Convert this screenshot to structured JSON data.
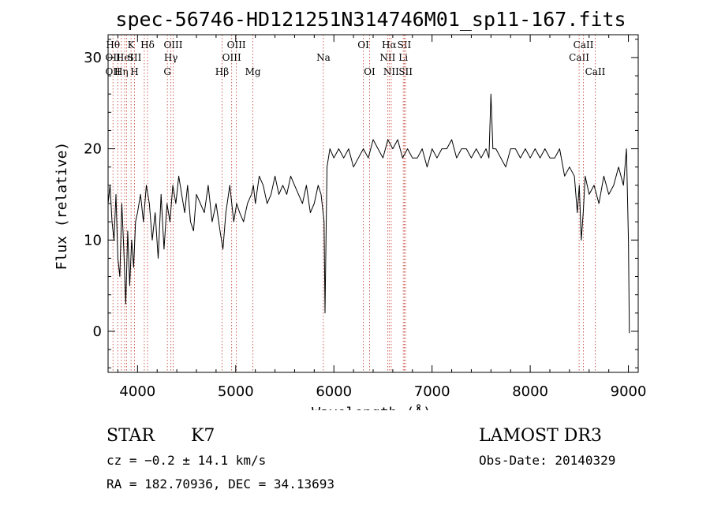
{
  "chart_data": {
    "type": "line",
    "title": "spec-56746-HD121251N314746M01_sp11-167.fits",
    "xlabel": "Wavelength (Å)",
    "ylabel": "Flux (relative)",
    "xlim": [
      3700,
      9100
    ],
    "ylim": [
      -4.5,
      32.5
    ],
    "xticks": [
      4000,
      5000,
      6000,
      7000,
      8000,
      9000
    ],
    "yticks": [
      0,
      10,
      20,
      30
    ],
    "grid": false,
    "series": [
      {
        "name": "flux",
        "color": "#000000",
        "x": [
          3700,
          3720,
          3740,
          3760,
          3780,
          3800,
          3820,
          3840,
          3860,
          3880,
          3900,
          3920,
          3940,
          3960,
          3980,
          4000,
          4030,
          4060,
          4090,
          4120,
          4150,
          4180,
          4210,
          4240,
          4270,
          4300,
          4330,
          4360,
          4390,
          4420,
          4450,
          4480,
          4510,
          4540,
          4570,
          4600,
          4640,
          4680,
          4720,
          4760,
          4800,
          4840,
          4870,
          4900,
          4940,
          4980,
          5010,
          5040,
          5080,
          5120,
          5160,
          5180,
          5200,
          5240,
          5280,
          5320,
          5360,
          5400,
          5440,
          5480,
          5520,
          5560,
          5600,
          5640,
          5680,
          5720,
          5760,
          5800,
          5840,
          5870,
          5900,
          5910,
          5930,
          5960,
          6000,
          6050,
          6100,
          6150,
          6200,
          6250,
          6300,
          6350,
          6400,
          6450,
          6500,
          6550,
          6600,
          6650,
          6700,
          6750,
          6800,
          6850,
          6900,
          6950,
          7000,
          7050,
          7100,
          7150,
          7200,
          7250,
          7300,
          7350,
          7400,
          7450,
          7500,
          7550,
          7580,
          7600,
          7620,
          7650,
          7700,
          7750,
          7800,
          7850,
          7900,
          7950,
          8000,
          8050,
          8100,
          8150,
          8200,
          8250,
          8300,
          8350,
          8400,
          8450,
          8480,
          8500,
          8520,
          8540,
          8560,
          8600,
          8650,
          8700,
          8750,
          8800,
          8850,
          8900,
          8950,
          8980,
          9000,
          9010
        ],
        "y": [
          14,
          16,
          12,
          10,
          15,
          8,
          6,
          14,
          9,
          3,
          11,
          5,
          10,
          7,
          12,
          13,
          15,
          12,
          16,
          14,
          10,
          13,
          8,
          15,
          9,
          14,
          12,
          16,
          14,
          17,
          15,
          13,
          16,
          12,
          11,
          15,
          14,
          13,
          16,
          12,
          14,
          11,
          9,
          13,
          16,
          12,
          14,
          13,
          12,
          14,
          15,
          16,
          14,
          17,
          16,
          14,
          15,
          17,
          15,
          16,
          15,
          17,
          16,
          15,
          14,
          16,
          13,
          14,
          16,
          15,
          12,
          2,
          18,
          20,
          19,
          20,
          19,
          20,
          18,
          19,
          20,
          19,
          21,
          20,
          19,
          21,
          20,
          21,
          19,
          20,
          19,
          19,
          20,
          18,
          20,
          19,
          20,
          20,
          21,
          19,
          20,
          20,
          19,
          20,
          19,
          20,
          19,
          26,
          20,
          20,
          19,
          18,
          20,
          20,
          19,
          20,
          19,
          20,
          19,
          20,
          19,
          19,
          20,
          17,
          18,
          17,
          13,
          16,
          10,
          13,
          17,
          15,
          16,
          14,
          17,
          15,
          16,
          18,
          16,
          20,
          10,
          -0.2
        ]
      }
    ],
    "line_markers": [
      {
        "w": 3750,
        "top": "Hθ",
        "mid": "OII",
        "bot": "OII"
      },
      {
        "w": 3798
      },
      {
        "w": 3835,
        "top": "",
        "mid": "",
        "bot": "Hη"
      },
      {
        "w": 3869,
        "top": "",
        "mid": "HeI",
        "bot": ""
      },
      {
        "w": 3889
      },
      {
        "w": 3934,
        "top": "K",
        "mid": "",
        "bot": ""
      },
      {
        "w": 3969,
        "top": "",
        "mid": "SII",
        "bot": "H"
      },
      {
        "w": 4069
      },
      {
        "w": 4102,
        "top": "Hδ",
        "mid": "",
        "bot": ""
      },
      {
        "w": 4304,
        "top": "",
        "mid": "",
        "bot": "G"
      },
      {
        "w": 4340,
        "top": "",
        "mid": "Hγ",
        "bot": ""
      },
      {
        "w": 4363,
        "top": "OIII",
        "mid": "",
        "bot": ""
      },
      {
        "w": 4861,
        "top": "",
        "mid": "",
        "bot": "Hβ"
      },
      {
        "w": 4959,
        "top": "",
        "mid": "OIII",
        "bot": ""
      },
      {
        "w": 5007,
        "top": "OIII",
        "mid": "",
        "bot": ""
      },
      {
        "w": 5175,
        "top": "",
        "mid": "",
        "bot": "Mg"
      },
      {
        "w": 5893,
        "top": "",
        "mid": "Na",
        "bot": ""
      },
      {
        "w": 6300,
        "top": "OI",
        "mid": "",
        "bot": ""
      },
      {
        "w": 6364,
        "top": "",
        "mid": "",
        "bot": "OI"
      },
      {
        "w": 6548,
        "top": "",
        "mid": "NII",
        "bot": ""
      },
      {
        "w": 6563,
        "top": "Hα",
        "mid": "",
        "bot": ""
      },
      {
        "w": 6584,
        "top": "",
        "mid": "",
        "bot": "NII"
      },
      {
        "w": 6707,
        "top": "",
        "mid": "Li",
        "bot": ""
      },
      {
        "w": 6717,
        "top": "SII",
        "mid": "",
        "bot": ""
      },
      {
        "w": 6731,
        "top": "",
        "mid": "",
        "bot": "SII"
      },
      {
        "w": 8498,
        "top": "",
        "mid": "CaII",
        "bot": ""
      },
      {
        "w": 8542,
        "top": "CaII",
        "mid": "",
        "bot": ""
      },
      {
        "w": 8662,
        "top": "",
        "mid": "",
        "bot": "CaII"
      }
    ]
  },
  "info": {
    "object_class": "STAR",
    "subclass": "K7",
    "cz": "cz = −0.2 ± 14.1 km/s",
    "coords": "RA = 182.70936, DEC =  34.13693",
    "survey": "LAMOST DR3",
    "obs_date": "Obs-Date: 20140329"
  },
  "colors": {
    "line_marker": "#c0392b",
    "spectrum": "#000000",
    "axes": "#000000"
  }
}
